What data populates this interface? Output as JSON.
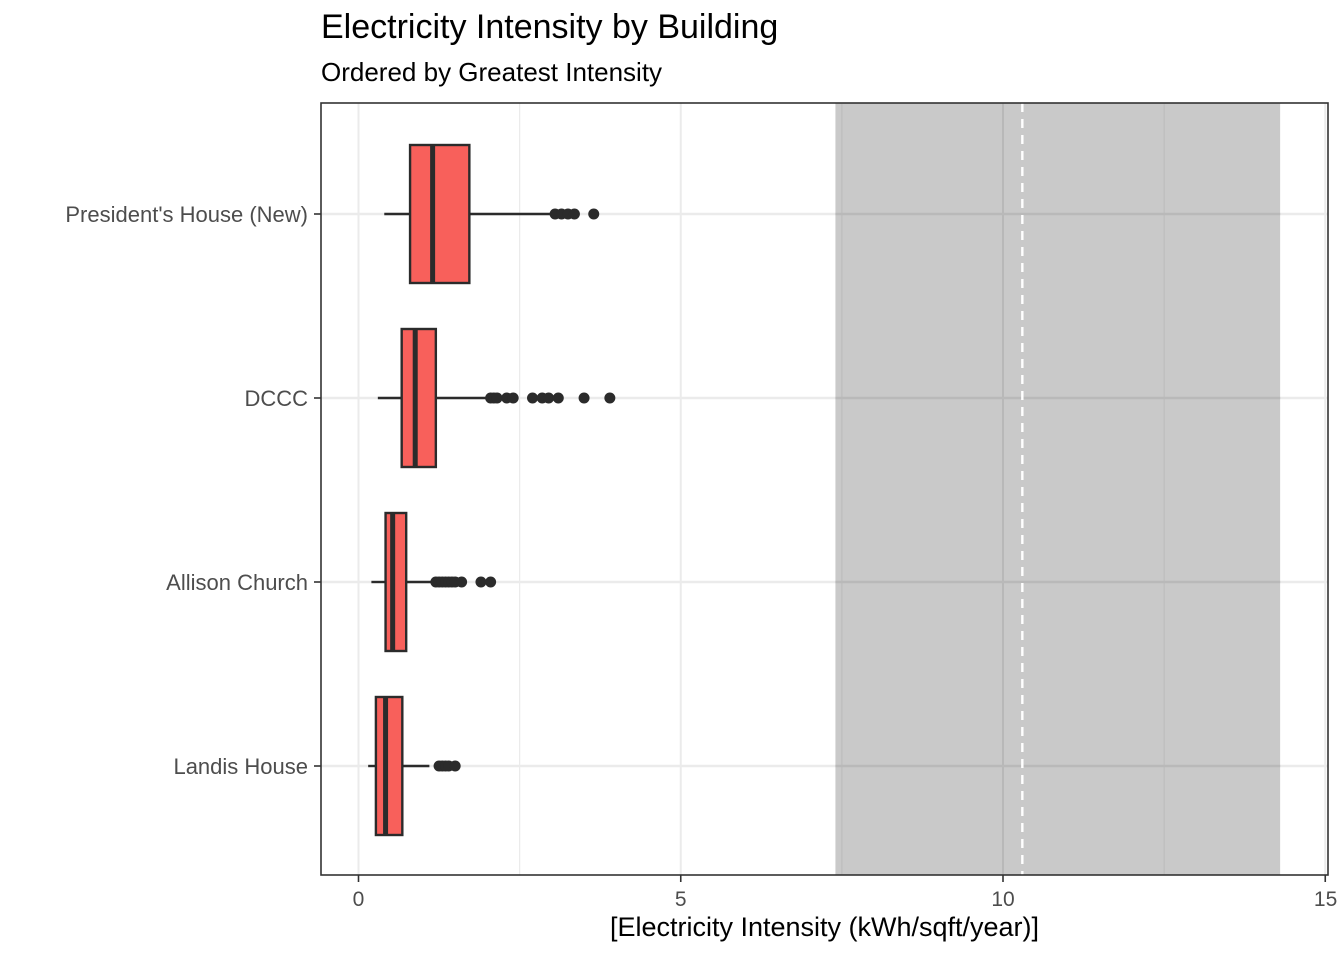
{
  "chart_data": {
    "type": "boxplot",
    "orientation": "horizontal",
    "title": "Electricity Intensity by Building",
    "subtitle": "Ordered by Greatest Intensity",
    "xlabel": "[Electricity Intensity (kWh/sqft/year)]",
    "ylabel": "",
    "xlim": [
      -0.55,
      15
    ],
    "x_ticks": [
      0,
      5,
      10,
      15
    ],
    "x_tick_labels": [
      "0",
      "5",
      "10",
      "15"
    ],
    "grid": true,
    "categories": [
      "President's House (New)",
      "DCCC",
      "Allison Church",
      "Landis House"
    ],
    "boxes": [
      {
        "category": "President's House (New)",
        "whisker_low": 0.4,
        "q1": 0.8,
        "median": 1.15,
        "q3": 1.72,
        "whisker_high": 3.0,
        "outliers": [
          3.05,
          3.15,
          3.25,
          3.35,
          3.65
        ]
      },
      {
        "category": "DCCC",
        "whisker_low": 0.3,
        "q1": 0.67,
        "median": 0.88,
        "q3": 1.2,
        "whisker_high": 2.0,
        "outliers": [
          2.05,
          2.1,
          2.15,
          2.3,
          2.4,
          2.7,
          2.85,
          2.95,
          3.1,
          3.5,
          3.9
        ]
      },
      {
        "category": "Allison Church",
        "whisker_low": 0.2,
        "q1": 0.42,
        "median": 0.53,
        "q3": 0.74,
        "whisker_high": 1.15,
        "outliers": [
          1.2,
          1.25,
          1.3,
          1.35,
          1.4,
          1.45,
          1.5,
          1.6,
          1.9,
          2.05
        ]
      },
      {
        "category": "Landis House",
        "whisker_low": 0.15,
        "q1": 0.27,
        "median": 0.42,
        "q3": 0.68,
        "whisker_high": 1.1,
        "outliers": [
          1.25,
          1.3,
          1.35,
          1.4,
          1.5
        ]
      }
    ],
    "reference_band": {
      "xmin": 7.4,
      "xmax": 14.3
    },
    "reference_line": {
      "x": 10.3,
      "style": "dashed"
    },
    "colors": {
      "box_fill": "#F8605B",
      "box_stroke": "#2b2b2b",
      "band_fill": "#c4c4c4",
      "reference_line": "#ffffff",
      "grid_major": "#ebebeb",
      "grid_minor": "#f4f4f4",
      "panel_border": "#333333"
    }
  }
}
